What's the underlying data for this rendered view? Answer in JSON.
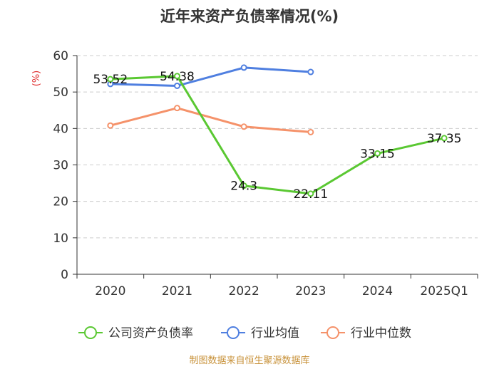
{
  "chart_data": {
    "type": "line",
    "title": "近年来资产负债率情况(%)",
    "ylabel": "(%)",
    "xlabel": "",
    "ylim": [
      0,
      60
    ],
    "yticks": [
      0,
      10,
      20,
      30,
      40,
      50,
      60
    ],
    "grid": true,
    "categories": [
      "2020",
      "2021",
      "2022",
      "2023",
      "2024",
      "2025Q1"
    ],
    "series": [
      {
        "name": "公司资产负债率",
        "color": "#5ac832",
        "values": [
          53.52,
          54.38,
          24.3,
          22.11,
          33.15,
          37.35
        ],
        "labels": [
          "53.52",
          "54.38",
          "24.3",
          "22.11",
          "33.15",
          "37.35"
        ]
      },
      {
        "name": "行业均值",
        "color": "#4f7fe0",
        "values": [
          52.2,
          51.7,
          56.7,
          55.5,
          null,
          null
        ]
      },
      {
        "name": "行业中位数",
        "color": "#f5926a",
        "values": [
          40.8,
          45.6,
          40.5,
          39.0,
          null,
          null
        ]
      }
    ],
    "legend_position": "bottom-center",
    "source": "制图数据来自恒生聚源数据库"
  }
}
